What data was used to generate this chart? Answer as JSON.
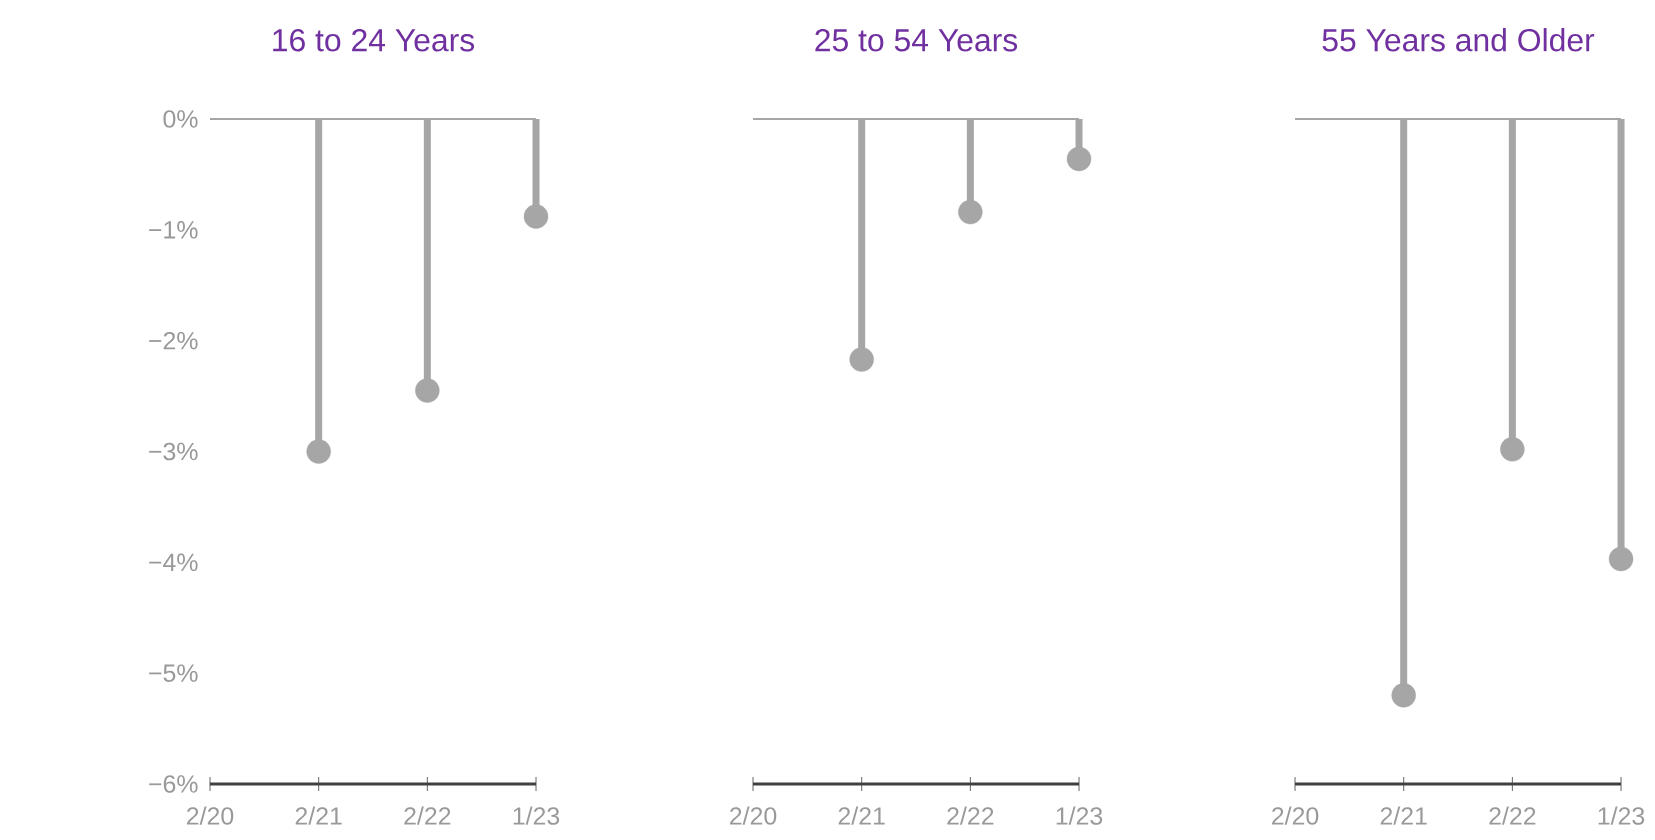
{
  "chart_data": [
    {
      "type": "lollipop",
      "title": "16 to 24 Years",
      "categories": [
        "2/20",
        "2/21",
        "2/22",
        "1/23"
      ],
      "values": [
        null,
        -3.0,
        -2.45,
        -0.88
      ],
      "color": "#a6a6a6",
      "marker": "circle",
      "ylim": [
        -6,
        0
      ],
      "yticks": [
        {
          "value": 0,
          "label": "0%"
        },
        {
          "value": -1,
          "label": "−1%"
        },
        {
          "value": -2,
          "label": "−2%"
        },
        {
          "value": -3,
          "label": "−3%"
        },
        {
          "value": -4,
          "label": "−4%"
        },
        {
          "value": -5,
          "label": "−5%"
        },
        {
          "value": -6,
          "label": "−6%"
        }
      ]
    },
    {
      "type": "lollipop",
      "title": "25 to 54 Years",
      "categories": [
        "2/20",
        "2/21",
        "2/22",
        "1/23"
      ],
      "values": [
        null,
        -2.17,
        -0.84,
        -0.36
      ],
      "color": "#a6a6a6",
      "marker": "circle",
      "ylim": [
        -6,
        0
      ],
      "tick_labels": "x"
    },
    {
      "type": "lollipop",
      "title": "55 Years and Older",
      "categories": [
        "2/20",
        "2/21",
        "2/22",
        "1/23"
      ],
      "values": [
        null,
        -5.2,
        -2.98,
        -3.97
      ],
      "color": "#a6a6a6",
      "marker": "circle",
      "ylim": [
        -6,
        0
      ],
      "tick_labels": "x"
    }
  ]
}
